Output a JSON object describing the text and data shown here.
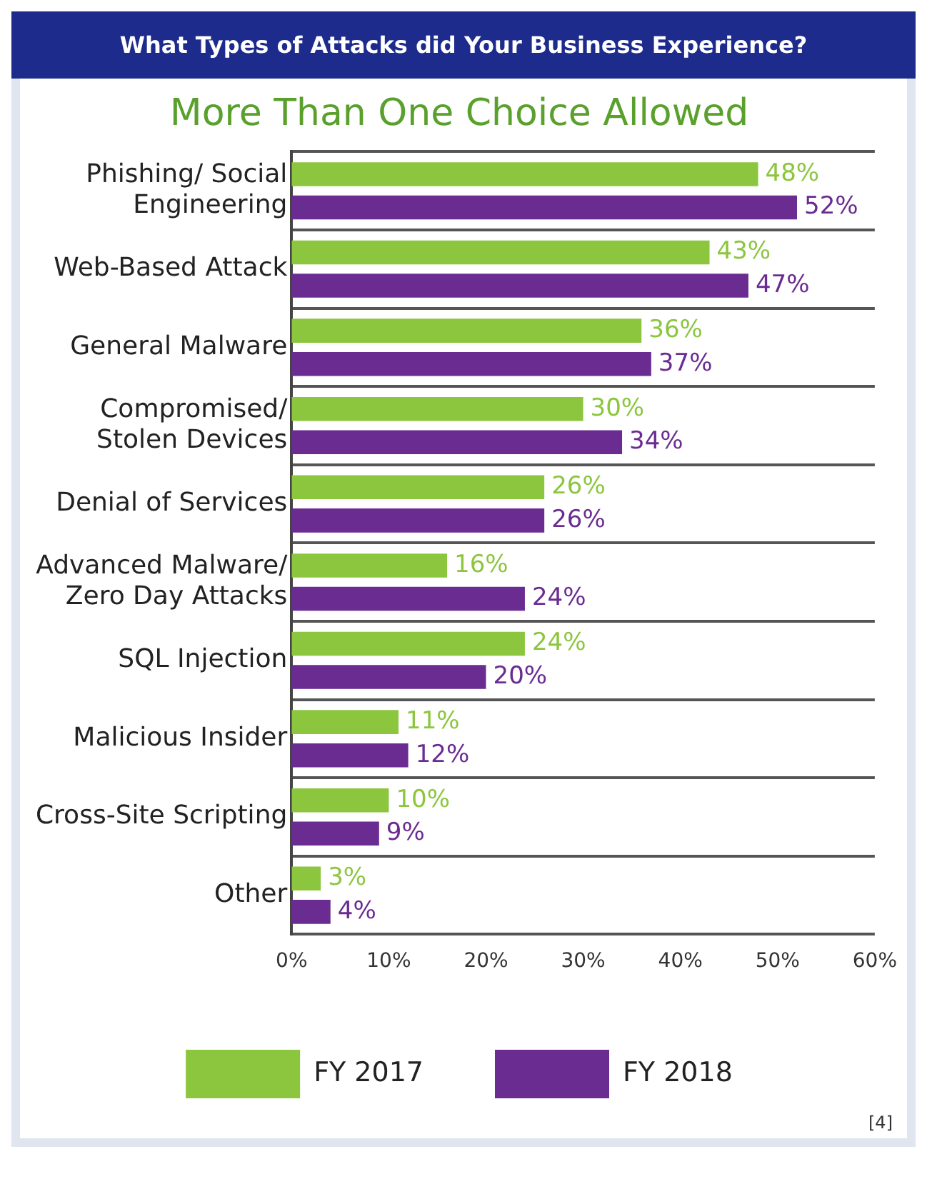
{
  "chart_data": {
    "type": "bar",
    "orientation": "horizontal",
    "title": "What Types of Attacks did Your Business Experience?",
    "subtitle": "More Than One Choice Allowed",
    "categories": [
      "Phishing/ Social Engineering",
      "Web-Based Attack",
      "General Malware",
      "Compromised/ Stolen Devices",
      "Denial of Services",
      "Advanced Malware/ Zero Day Attacks",
      "SQL Injection",
      "Malicious Insider",
      "Cross-Site Scripting",
      "Other"
    ],
    "series": [
      {
        "name": "FY 2017",
        "color": "#8cc63f",
        "values": [
          48,
          43,
          36,
          30,
          26,
          16,
          24,
          11,
          10,
          3
        ],
        "value_labels": [
          "48%",
          "43%",
          "36%",
          "30%",
          "26%",
          "16%",
          "24%",
          "11%",
          "10%",
          "3%"
        ]
      },
      {
        "name": "FY 2018",
        "color": "#6a2c91",
        "values": [
          52,
          47,
          37,
          34,
          26,
          24,
          20,
          12,
          9,
          4
        ],
        "value_labels": [
          "52%",
          "47%",
          "37%",
          "34%",
          "26%",
          "24%",
          "20%",
          "12%",
          "9%",
          "4%"
        ]
      }
    ],
    "xlim": [
      0,
      60
    ],
    "xticks": [
      {
        "value": 0,
        "label": "0%"
      },
      {
        "value": 10,
        "label": "10%"
      },
      {
        "value": 20,
        "label": "20%"
      },
      {
        "value": 30,
        "label": "30%"
      },
      {
        "value": 40,
        "label": "40%"
      },
      {
        "value": 50,
        "label": "50%"
      },
      {
        "value": 60,
        "label": "60%"
      }
    ],
    "grid": "y",
    "legend": "bottom",
    "annotations": [
      "[4]"
    ]
  }
}
